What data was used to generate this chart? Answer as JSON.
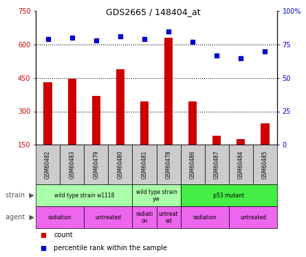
{
  "title": "GDS2665 / 148404_at",
  "samples": [
    "GSM60482",
    "GSM60483",
    "GSM60479",
    "GSM60480",
    "GSM60481",
    "GSM60478",
    "GSM60486",
    "GSM60487",
    "GSM60484",
    "GSM60485"
  ],
  "counts": [
    430,
    445,
    370,
    490,
    345,
    630,
    345,
    190,
    175,
    245
  ],
  "percentiles": [
    79,
    80,
    78,
    81,
    79,
    85,
    77,
    67,
    65,
    70
  ],
  "ylim_left": [
    150,
    750
  ],
  "ylim_right": [
    0,
    100
  ],
  "yticks_left": [
    150,
    300,
    450,
    600,
    750
  ],
  "yticks_right": [
    0,
    25,
    50,
    75,
    100
  ],
  "ytick_labels_left": [
    "150",
    "300",
    "450",
    "600",
    "750"
  ],
  "ytick_labels_right": [
    "0",
    "25",
    "50",
    "75",
    "100%"
  ],
  "bar_color": "#cc0000",
  "dot_color": "#0000cc",
  "dotted_lines": [
    300,
    450,
    600
  ],
  "strain_groups": [
    {
      "label": "wild type strain w1118",
      "start": 0,
      "end": 4,
      "color": "#99ee99"
    },
    {
      "label": "wild type strain\nyw",
      "start": 4,
      "end": 6,
      "color": "#99ee99"
    },
    {
      "label": "p53 mutant",
      "start": 6,
      "end": 10,
      "color": "#44dd44"
    }
  ],
  "agent_groups": [
    {
      "label": "radiation",
      "start": 0,
      "end": 2,
      "color": "#ee66ee"
    },
    {
      "label": "untreated",
      "start": 2,
      "end": 4,
      "color": "#ee66ee"
    },
    {
      "label": "radiati\non",
      "start": 4,
      "end": 5,
      "color": "#ee66ee"
    },
    {
      "label": "untreat\ned",
      "start": 5,
      "end": 6,
      "color": "#ee66ee"
    },
    {
      "label": "radiation",
      "start": 6,
      "end": 8,
      "color": "#ee66ee"
    },
    {
      "label": "untreated",
      "start": 8,
      "end": 10,
      "color": "#ee66ee"
    }
  ],
  "legend_count_color": "#cc0000",
  "legend_pct_color": "#0000cc",
  "bg_color": "#ffffff",
  "sample_bg_color": "#cccccc",
  "bar_width": 0.35
}
